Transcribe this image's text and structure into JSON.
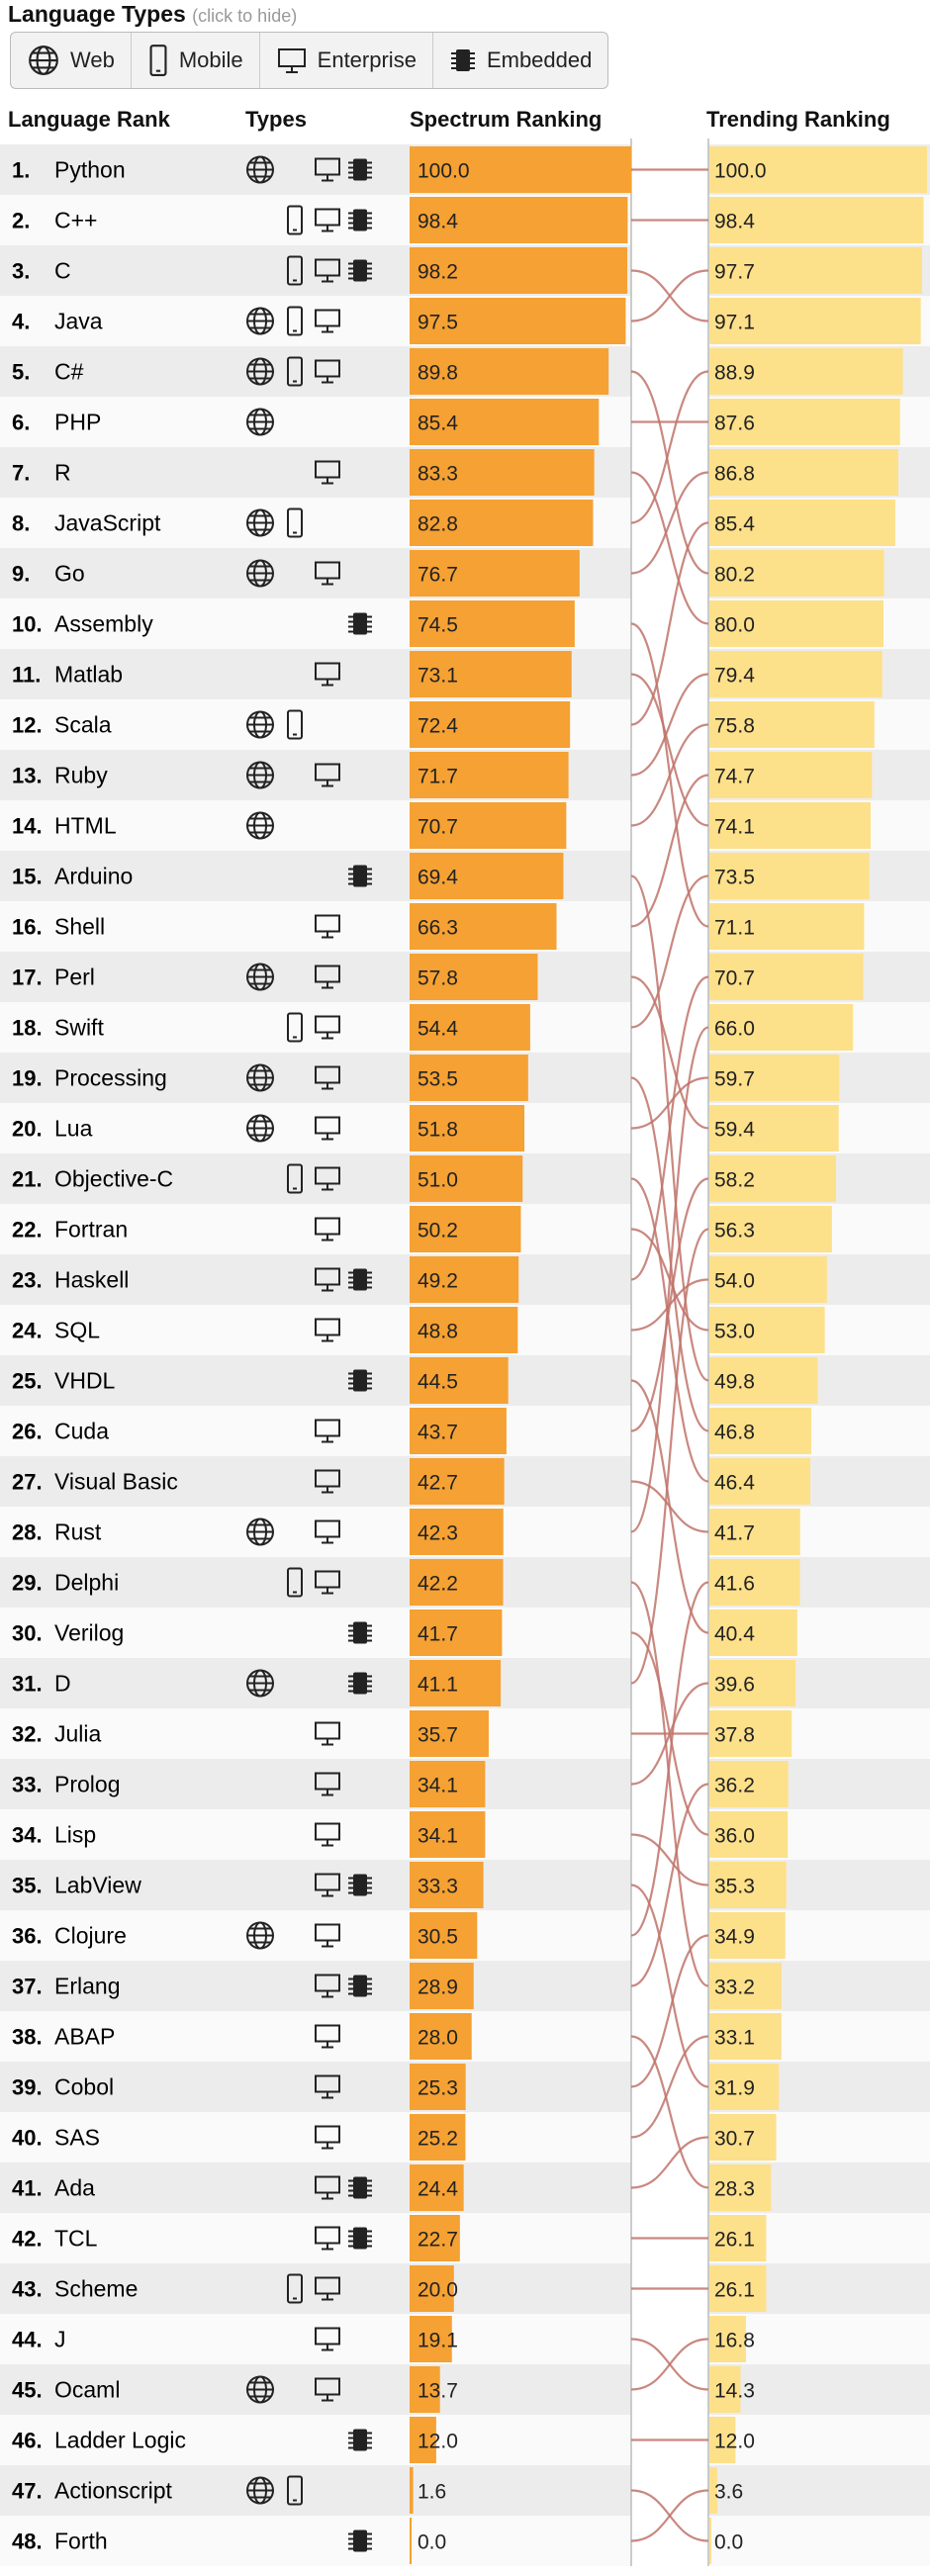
{
  "legend": {
    "title": "Language Types",
    "hint": "(click to hide)",
    "types": [
      {
        "key": "web",
        "label": "Web",
        "icon": "globe-icon"
      },
      {
        "key": "mobile",
        "label": "Mobile",
        "icon": "phone-icon"
      },
      {
        "key": "enterprise",
        "label": "Enterprise",
        "icon": "monitor-icon"
      },
      {
        "key": "embedded",
        "label": "Embedded",
        "icon": "chip-icon"
      }
    ]
  },
  "headers": {
    "language_rank": "Language Rank",
    "types": "Types",
    "spectrum": "Spectrum Ranking",
    "trending": "Trending Ranking"
  },
  "colors": {
    "spectrum_bar": "#f5a133",
    "trending_bar": "#fde08a",
    "link": "#c0736a",
    "row_alt": "#ececec"
  },
  "chart_data": {
    "type": "bar",
    "title": "",
    "xlim": [
      0,
      100
    ],
    "languages": [
      {
        "rank": "1.",
        "name": "Python",
        "types": [
          "web",
          "enterprise",
          "embedded"
        ],
        "spectrum": "100.0",
        "trending_rank": 1
      },
      {
        "rank": "2.",
        "name": "C++",
        "types": [
          "mobile",
          "enterprise",
          "embedded"
        ],
        "spectrum": "98.4",
        "trending_rank": 2
      },
      {
        "rank": "3.",
        "name": "C",
        "types": [
          "mobile",
          "enterprise",
          "embedded"
        ],
        "spectrum": "98.2",
        "trending_rank": 4
      },
      {
        "rank": "4.",
        "name": "Java",
        "types": [
          "web",
          "mobile",
          "enterprise"
        ],
        "spectrum": "97.5",
        "trending_rank": 3
      },
      {
        "rank": "5.",
        "name": "C#",
        "types": [
          "web",
          "mobile",
          "enterprise"
        ],
        "spectrum": "89.8",
        "trending_rank": 9
      },
      {
        "rank": "6.",
        "name": "PHP",
        "types": [
          "web"
        ],
        "spectrum": "85.4",
        "trending_rank": 6
      },
      {
        "rank": "7.",
        "name": "R",
        "types": [
          "enterprise"
        ],
        "spectrum": "83.3",
        "trending_rank": 10
      },
      {
        "rank": "8.",
        "name": "JavaScript",
        "types": [
          "web",
          "mobile"
        ],
        "spectrum": "82.8",
        "trending_rank": 5
      },
      {
        "rank": "9.",
        "name": "Go",
        "types": [
          "web",
          "enterprise"
        ],
        "spectrum": "76.7",
        "trending_rank": 7
      },
      {
        "rank": "10.",
        "name": "Assembly",
        "types": [
          "embedded"
        ],
        "spectrum": "74.5",
        "trending_rank": 16
      },
      {
        "rank": "11.",
        "name": "Matlab",
        "types": [
          "enterprise"
        ],
        "spectrum": "73.1",
        "trending_rank": 14
      },
      {
        "rank": "12.",
        "name": "Scala",
        "types": [
          "web",
          "mobile"
        ],
        "spectrum": "72.4",
        "trending_rank": 8
      },
      {
        "rank": "13.",
        "name": "Ruby",
        "types": [
          "web",
          "enterprise"
        ],
        "spectrum": "71.7",
        "trending_rank": 11
      },
      {
        "rank": "14.",
        "name": "HTML",
        "types": [
          "web"
        ],
        "spectrum": "70.7",
        "trending_rank": 12
      },
      {
        "rank": "15.",
        "name": "Arduino",
        "types": [
          "embedded"
        ],
        "spectrum": "69.4",
        "trending_rank": 25
      },
      {
        "rank": "16.",
        "name": "Shell",
        "types": [
          "enterprise"
        ],
        "spectrum": "66.3",
        "trending_rank": 13
      },
      {
        "rank": "17.",
        "name": "Perl",
        "types": [
          "web",
          "enterprise"
        ],
        "spectrum": "57.8",
        "trending_rank": 20
      },
      {
        "rank": "18.",
        "name": "Swift",
        "types": [
          "mobile",
          "enterprise"
        ],
        "spectrum": "54.4",
        "trending_rank": 15
      },
      {
        "rank": "19.",
        "name": "Processing",
        "types": [
          "web",
          "enterprise"
        ],
        "spectrum": "53.5",
        "trending_rank": 26
      },
      {
        "rank": "20.",
        "name": "Lua",
        "types": [
          "web",
          "enterprise"
        ],
        "spectrum": "51.8",
        "trending_rank": 19
      },
      {
        "rank": "21.",
        "name": "Objective-C",
        "types": [
          "mobile",
          "enterprise"
        ],
        "spectrum": "51.0",
        "trending_rank": 27
      },
      {
        "rank": "22.",
        "name": "Fortran",
        "types": [
          "enterprise"
        ],
        "spectrum": "50.2",
        "trending_rank": 24
      },
      {
        "rank": "23.",
        "name": "Haskell",
        "types": [
          "enterprise",
          "embedded"
        ],
        "spectrum": "49.2",
        "trending_rank": 17
      },
      {
        "rank": "24.",
        "name": "SQL",
        "types": [
          "enterprise"
        ],
        "spectrum": "48.8",
        "trending_rank": 23
      },
      {
        "rank": "25.",
        "name": "VHDL",
        "types": [
          "embedded"
        ],
        "spectrum": "44.5",
        "trending_rank": 30
      },
      {
        "rank": "26.",
        "name": "Cuda",
        "types": [
          "enterprise"
        ],
        "spectrum": "43.7",
        "trending_rank": 21
      },
      {
        "rank": "27.",
        "name": "Visual Basic",
        "types": [
          "enterprise"
        ],
        "spectrum": "42.7",
        "trending_rank": 28
      },
      {
        "rank": "28.",
        "name": "Rust",
        "types": [
          "web",
          "enterprise"
        ],
        "spectrum": "42.3",
        "trending_rank": 18
      },
      {
        "rank": "29.",
        "name": "Delphi",
        "types": [
          "mobile",
          "enterprise"
        ],
        "spectrum": "42.2",
        "trending_rank": 37
      },
      {
        "rank": "30.",
        "name": "Verilog",
        "types": [
          "embedded"
        ],
        "spectrum": "41.7",
        "trending_rank": 34
      },
      {
        "rank": "31.",
        "name": "D",
        "types": [
          "web",
          "embedded"
        ],
        "spectrum": "41.1",
        "trending_rank": 22
      },
      {
        "rank": "32.",
        "name": "Julia",
        "types": [
          "enterprise"
        ],
        "spectrum": "35.7",
        "trending_rank": 32
      },
      {
        "rank": "33.",
        "name": "Prolog",
        "types": [
          "enterprise"
        ],
        "spectrum": "34.1",
        "trending_rank": 31
      },
      {
        "rank": "34.",
        "name": "Lisp",
        "types": [
          "enterprise"
        ],
        "spectrum": "34.1",
        "trending_rank": 35
      },
      {
        "rank": "35.",
        "name": "LabView",
        "types": [
          "enterprise",
          "embedded"
        ],
        "spectrum": "33.3",
        "trending_rank": 39
      },
      {
        "rank": "36.",
        "name": "Clojure",
        "types": [
          "web",
          "enterprise"
        ],
        "spectrum": "30.5",
        "trending_rank": 29
      },
      {
        "rank": "37.",
        "name": "Erlang",
        "types": [
          "enterprise",
          "embedded"
        ],
        "spectrum": "28.9",
        "trending_rank": 33
      },
      {
        "rank": "38.",
        "name": "ABAP",
        "types": [
          "enterprise"
        ],
        "spectrum": "28.0",
        "trending_rank": 41
      },
      {
        "rank": "39.",
        "name": "Cobol",
        "types": [
          "enterprise"
        ],
        "spectrum": "25.3",
        "trending_rank": 36
      },
      {
        "rank": "40.",
        "name": "SAS",
        "types": [
          "enterprise"
        ],
        "spectrum": "25.2",
        "trending_rank": 38
      },
      {
        "rank": "41.",
        "name": "Ada",
        "types": [
          "enterprise",
          "embedded"
        ],
        "spectrum": "24.4",
        "trending_rank": 40
      },
      {
        "rank": "42.",
        "name": "TCL",
        "types": [
          "enterprise",
          "embedded"
        ],
        "spectrum": "22.7",
        "trending_rank": 42
      },
      {
        "rank": "43.",
        "name": "Scheme",
        "types": [
          "mobile",
          "enterprise"
        ],
        "spectrum": "20.0",
        "trending_rank": 43
      },
      {
        "rank": "44.",
        "name": "J",
        "types": [
          "enterprise"
        ],
        "spectrum": "19.1",
        "trending_rank": 45
      },
      {
        "rank": "45.",
        "name": "Ocaml",
        "types": [
          "web",
          "enterprise"
        ],
        "spectrum": "13.7",
        "trending_rank": 44
      },
      {
        "rank": "46.",
        "name": "Ladder Logic",
        "types": [
          "embedded"
        ],
        "spectrum": "12.0",
        "trending_rank": 46
      },
      {
        "rank": "47.",
        "name": "Actionscript",
        "types": [
          "web",
          "mobile"
        ],
        "spectrum": "1.6",
        "trending_rank": 48
      },
      {
        "rank": "48.",
        "name": "Forth",
        "types": [
          "embedded"
        ],
        "spectrum": "0.0",
        "trending_rank": 47
      }
    ],
    "trending_values": [
      "100.0",
      "98.4",
      "97.7",
      "97.1",
      "88.9",
      "87.6",
      "86.8",
      "85.4",
      "80.2",
      "80.0",
      "79.4",
      "75.8",
      "74.7",
      "74.1",
      "73.5",
      "71.1",
      "70.7",
      "66.0",
      "59.7",
      "59.4",
      "58.2",
      "56.3",
      "54.0",
      "53.0",
      "49.8",
      "46.8",
      "46.4",
      "41.7",
      "41.6",
      "40.4",
      "39.6",
      "37.8",
      "36.2",
      "36.0",
      "35.3",
      "34.9",
      "33.2",
      "33.1",
      "31.9",
      "30.7",
      "28.3",
      "26.1",
      "26.1",
      "16.8",
      "14.3",
      "12.0",
      "3.6",
      "0.0"
    ]
  }
}
